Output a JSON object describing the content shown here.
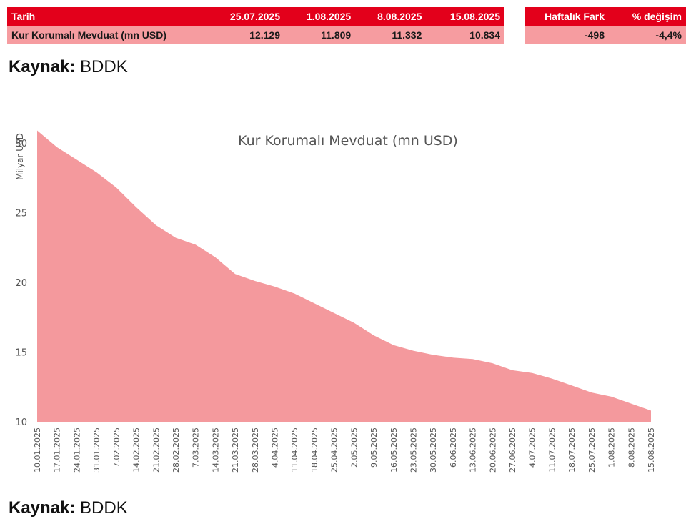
{
  "table": {
    "header": [
      "Tarih",
      "25.07.2025",
      "1.08.2025",
      "8.08.2025",
      "15.08.2025"
    ],
    "row": [
      "Kur Korumalı Mevduat (mn USD)",
      "12.129",
      "11.809",
      "11.332",
      "10.834"
    ],
    "change_header": [
      "Haftalık Fark",
      "% değişim"
    ],
    "change_row": [
      "-498",
      "-4,4%"
    ]
  },
  "source_top": {
    "label": "Kaynak:",
    "value": "BDDK"
  },
  "source_bottom": {
    "label": "Kaynak:",
    "value": "BDDK"
  },
  "colors": {
    "header_red": "#e3001b",
    "row_pink": "#f69ca0",
    "area_fill": "#f4999d"
  },
  "chart_data": {
    "type": "area",
    "title": "Kur Korumalı Mevduat (mn USD)",
    "ylabel": "Milyar USD",
    "xlabel": "",
    "ylim": [
      10,
      30
    ],
    "yticks": [
      10,
      15,
      20,
      25,
      30
    ],
    "grid": false,
    "x": [
      "10.01.2025",
      "17.01.2025",
      "24.01.2025",
      "31.01.2025",
      "7.02.2025",
      "14.02.2025",
      "21.02.2025",
      "28.02.2025",
      "7.03.2025",
      "14.03.2025",
      "21.03.2025",
      "28.03.2025",
      "4.04.2025",
      "11.04.2025",
      "18.04.2025",
      "25.04.2025",
      "2.05.2025",
      "9.05.2025",
      "16.05.2025",
      "23.05.2025",
      "30.05.2025",
      "6.06.2025",
      "13.06.2025",
      "20.06.2025",
      "27.06.2025",
      "4.07.2025",
      "11.07.2025",
      "18.07.2025",
      "25.07.2025",
      "1.08.2025",
      "8.08.2025",
      "15.08.2025"
    ],
    "values": [
      30.9,
      29.7,
      28.8,
      27.9,
      26.8,
      25.4,
      24.1,
      23.2,
      22.7,
      21.8,
      20.6,
      20.1,
      19.7,
      19.2,
      18.5,
      17.8,
      17.1,
      16.2,
      15.5,
      15.1,
      14.8,
      14.6,
      14.5,
      14.2,
      13.7,
      13.5,
      13.1,
      12.6,
      12.1,
      11.8,
      11.3,
      10.8
    ]
  }
}
